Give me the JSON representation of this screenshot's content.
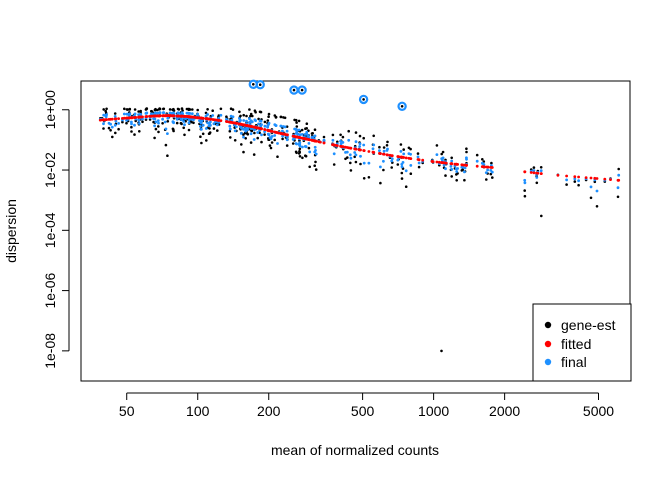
{
  "chart_data": {
    "type": "scatter",
    "title": "",
    "xlabel": "mean of normalized counts",
    "ylabel": "dispersion",
    "x_scale": "log",
    "y_scale": "log",
    "xlim": [
      32,
      6800
    ],
    "ylim": [
      1e-09,
      9
    ],
    "x_ticks": [
      {
        "value": 50,
        "label": "50"
      },
      {
        "value": 100,
        "label": "100"
      },
      {
        "value": 200,
        "label": "200"
      },
      {
        "value": 500,
        "label": "500"
      },
      {
        "value": 1000,
        "label": "1000"
      },
      {
        "value": 2000,
        "label": "2000"
      },
      {
        "value": 5000,
        "label": "5000"
      }
    ],
    "y_ticks": [
      {
        "value": 1e-08,
        "label": "1e-08"
      },
      {
        "value": 1e-06,
        "label": "1e-06"
      },
      {
        "value": 0.0001,
        "label": "1e-04"
      },
      {
        "value": 0.01,
        "label": "1e-02"
      },
      {
        "value": 1,
        "label": "1e+00"
      }
    ],
    "legend": {
      "position": "bottom-right",
      "entries": [
        {
          "label": "gene-est",
          "color": "#000000"
        },
        {
          "label": "fitted",
          "color": "#ff0000"
        },
        {
          "label": "final",
          "color": "#1e90ff"
        }
      ]
    },
    "fitted_curve": [
      [
        38,
        0.45
      ],
      [
        45,
        0.5
      ],
      [
        55,
        0.56
      ],
      [
        65,
        0.62
      ],
      [
        75,
        0.64
      ],
      [
        90,
        0.6
      ],
      [
        110,
        0.5
      ],
      [
        130,
        0.42
      ],
      [
        150,
        0.34
      ],
      [
        180,
        0.25
      ],
      [
        220,
        0.17
      ],
      [
        270,
        0.12
      ],
      [
        330,
        0.085
      ],
      [
        400,
        0.062
      ],
      [
        500,
        0.045
      ],
      [
        650,
        0.031
      ],
      [
        800,
        0.024
      ],
      [
        1000,
        0.019
      ],
      [
        1300,
        0.015
      ],
      [
        1800,
        0.012
      ],
      [
        2500,
        0.0085
      ],
      [
        3500,
        0.0065
      ],
      [
        5000,
        0.0052
      ],
      [
        6200,
        0.0045
      ]
    ],
    "outliers": [
      {
        "x": 172,
        "y": 7.0
      },
      {
        "x": 184,
        "y": 6.8
      },
      {
        "x": 256,
        "y": 4.5
      },
      {
        "x": 277,
        "y": 4.5
      },
      {
        "x": 505,
        "y": 2.2
      },
      {
        "x": 735,
        "y": 1.3
      }
    ],
    "gene_est_extra": [
      {
        "x": 1080,
        "y": 1e-08
      },
      {
        "x": 2860,
        "y": 0.0003
      }
    ],
    "n_points": 420
  }
}
